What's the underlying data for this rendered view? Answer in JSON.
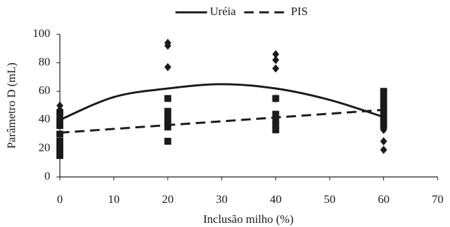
{
  "chart_data": {
    "type": "scatter",
    "xlabel": "Inclusão milho (%)",
    "ylabel": "Parâmetro D (mL)",
    "xlim": [
      0,
      70
    ],
    "xticks": [
      0,
      10,
      20,
      30,
      40,
      50,
      60,
      70
    ],
    "ylim": [
      0,
      100
    ],
    "yticks": [
      0,
      20,
      40,
      60,
      80,
      100
    ],
    "legend": "top",
    "series": [
      {
        "name": "Uréia",
        "color": "#1a1a1a",
        "marker": "diamond",
        "line_style": "solid",
        "x": [
          0,
          0,
          0,
          0,
          0,
          0,
          20,
          20,
          20,
          20,
          20,
          20,
          40,
          40,
          40,
          40,
          40,
          40,
          60,
          60,
          60,
          60,
          60
        ],
        "values": [
          50,
          47,
          44,
          42,
          40,
          38,
          94,
          92,
          77,
          45,
          40,
          36,
          86,
          82,
          76,
          55,
          42,
          38,
          45,
          40,
          33,
          25,
          19
        ],
        "fit_x": [
          0,
          10,
          20,
          30,
          40,
          50,
          60
        ],
        "fit_values": [
          40,
          56,
          62,
          65,
          62,
          54,
          42
        ]
      },
      {
        "name": "PIS",
        "color": "#1a1a1a",
        "marker": "square",
        "line_style": "dashed",
        "x": [
          0,
          0,
          0,
          0,
          0,
          0,
          0,
          0,
          0,
          20,
          20,
          20,
          20,
          20,
          20,
          40,
          40,
          40,
          40,
          40,
          60,
          60,
          60,
          60,
          60,
          60,
          60
        ],
        "values": [
          45,
          40,
          36,
          30,
          25,
          22,
          19,
          17,
          15,
          55,
          46,
          42,
          38,
          35,
          25,
          55,
          44,
          40,
          36,
          33,
          60,
          56,
          52,
          48,
          44,
          40,
          36
        ],
        "fit_x": [
          0,
          60
        ],
        "fit_values": [
          31,
          47
        ]
      }
    ]
  }
}
